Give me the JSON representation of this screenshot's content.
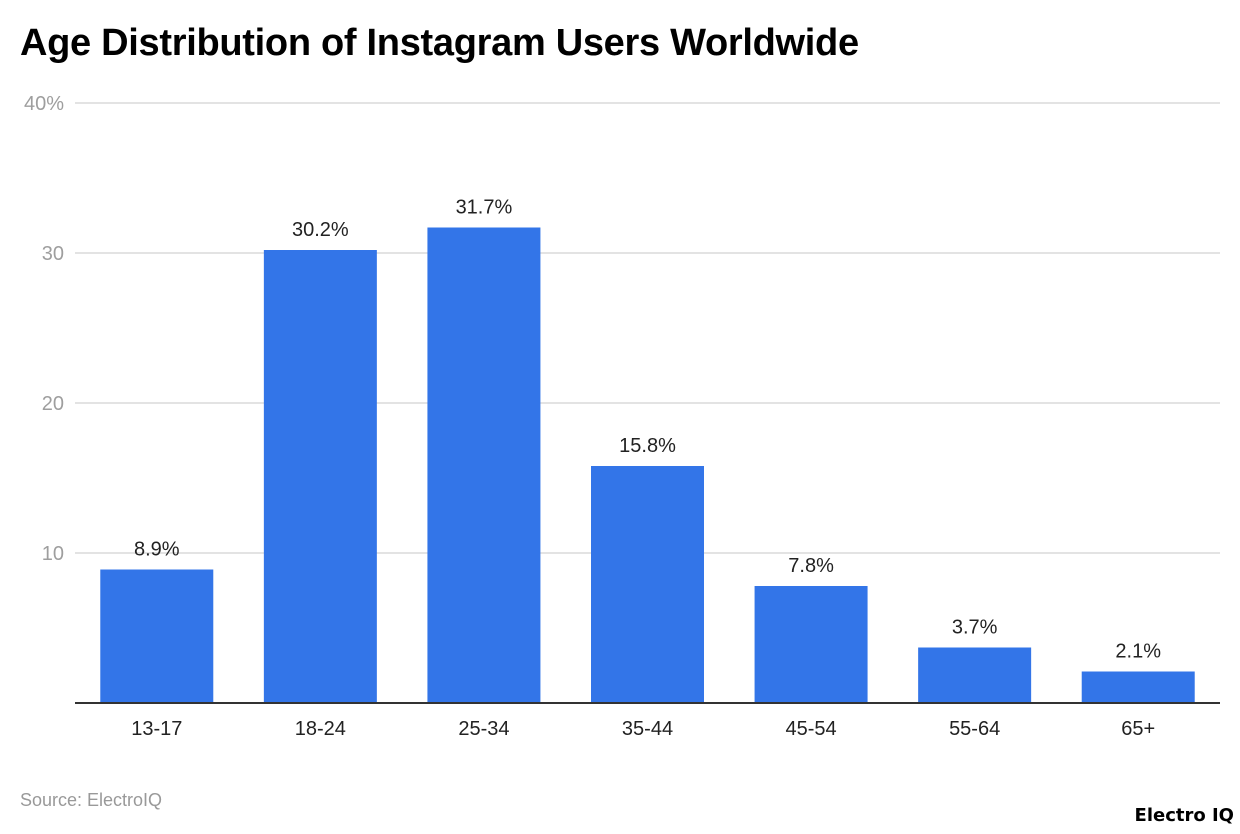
{
  "chart_data": {
    "type": "bar",
    "title": "Age Distribution of Instagram Users Worldwide",
    "categories": [
      "13-17",
      "18-24",
      "25-34",
      "35-44",
      "45-54",
      "55-64",
      "65+"
    ],
    "values": [
      8.9,
      30.2,
      31.7,
      15.8,
      7.8,
      3.7,
      2.1
    ],
    "data_labels": [
      "8.9%",
      "30.2%",
      "31.7%",
      "15.8%",
      "7.8%",
      "3.7%",
      "2.1%"
    ],
    "xlabel": "",
    "ylabel": "",
    "ylim": [
      0,
      40
    ],
    "yticks": [
      10,
      20,
      30,
      40
    ],
    "ytick_labels": [
      "10",
      "20",
      "30",
      "40%"
    ],
    "grid": true,
    "bar_color": "#3375e8"
  },
  "source": "Source: ElectroIQ",
  "logo": "Electro IQ"
}
